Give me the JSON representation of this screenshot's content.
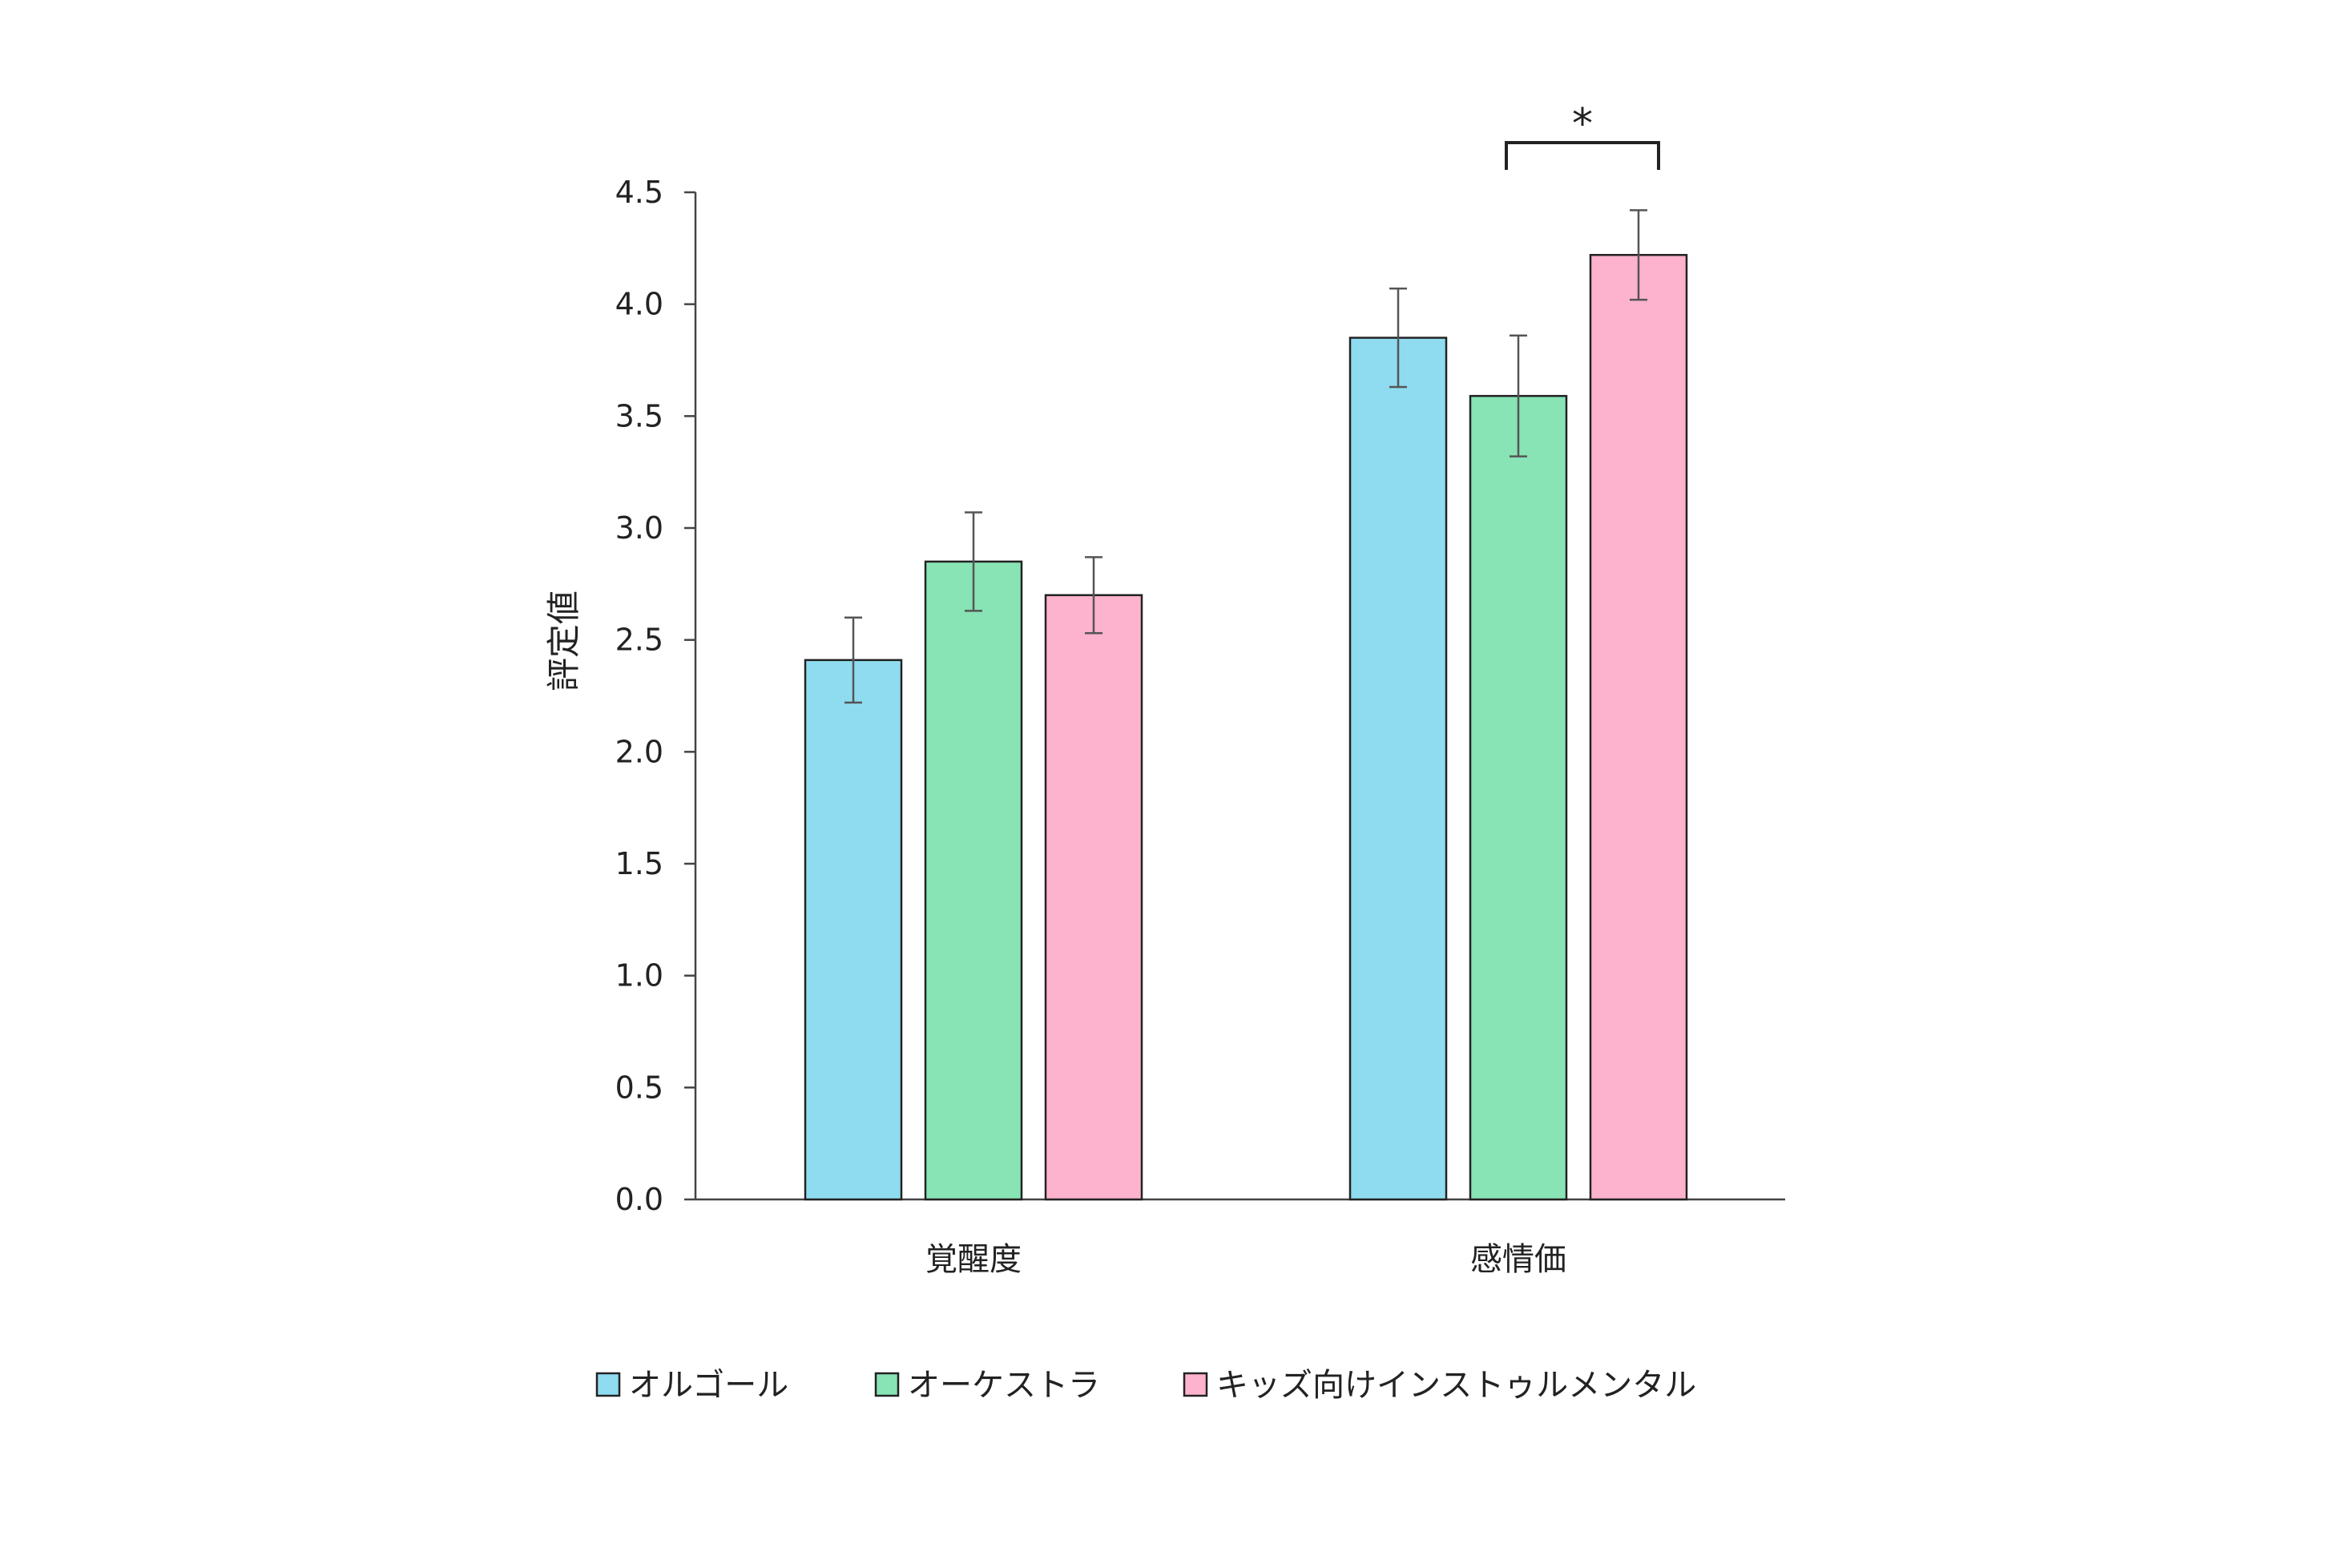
{
  "chart_data": {
    "type": "bar",
    "title": "",
    "xlabel": "",
    "ylabel": "評定値",
    "ylim": [
      0,
      4.5
    ],
    "yticks": [
      "0.0",
      "0.5",
      "1.0",
      "1.5",
      "2.0",
      "2.5",
      "3.0",
      "3.5",
      "4.0",
      "4.5"
    ],
    "categories": [
      "覚醒度",
      "感情価"
    ],
    "grid": false,
    "legend_position": "bottom",
    "series": [
      {
        "name": "オルゴール",
        "color": "#8fdcf0",
        "values": [
          2.41,
          3.85
        ],
        "errors": [
          0.19,
          0.22
        ]
      },
      {
        "name": "オーケストラ",
        "color": "#88e3b5",
        "values": [
          2.85,
          3.59
        ],
        "errors": [
          0.22,
          0.27
        ]
      },
      {
        "name": "キッズ向けインストゥルメンタル",
        "color": "#fdb2cd",
        "values": [
          2.7,
          4.22
        ],
        "errors": [
          0.17,
          0.2
        ]
      }
    ],
    "annotations": [
      {
        "label": "*",
        "category": "感情価",
        "from_series": 1,
        "to_series": 2
      }
    ]
  }
}
